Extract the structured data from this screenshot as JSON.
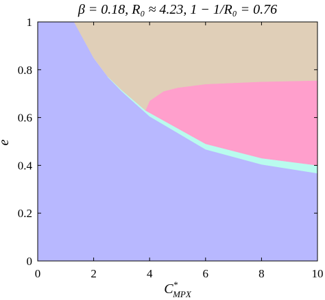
{
  "chart_data": {
    "type": "region",
    "title": "β = 0.18, R₀ ≈ 4.23, 1 − 1/R₀ = 0.76",
    "xlabel": {
      "base": "C",
      "sup": "*",
      "sub": "MPX"
    },
    "ylabel": "e",
    "xlim": [
      0,
      10
    ],
    "ylim": [
      0,
      1
    ],
    "xticks": [
      0,
      2,
      4,
      6,
      8,
      10
    ],
    "yticks": [
      0,
      0.2,
      0.4,
      0.6,
      0.8,
      1
    ],
    "regions": [
      {
        "color": "#b8b8ff",
        "x": [
          0,
          0,
          1.3,
          2,
          2.5,
          3,
          4,
          6,
          8,
          10,
          10
        ],
        "y": [
          0,
          1,
          1,
          0.848,
          0.77,
          0.71,
          0.605,
          0.467,
          0.404,
          0.367,
          0
        ]
      },
      {
        "color": "#b9fbee",
        "x": [
          2.5,
          3,
          4,
          6,
          8,
          10,
          10,
          8,
          6,
          4,
          3,
          2.5
        ],
        "y": [
          0.77,
          0.71,
          0.605,
          0.467,
          0.404,
          0.367,
          0.4,
          0.43,
          0.49,
          0.62,
          0.715,
          0.772
        ]
      },
      {
        "color": "#ff9fcc",
        "x": [
          3.85,
          4,
          6,
          8,
          10,
          10,
          8,
          6,
          5,
          4.5,
          4
        ],
        "y": [
          0.63,
          0.62,
          0.49,
          0.43,
          0.4,
          0.755,
          0.75,
          0.74,
          0.725,
          0.71,
          0.67
        ]
      },
      {
        "color": "#e0cfb8",
        "x": [
          1.3,
          2,
          2.5,
          3,
          3.85,
          4,
          4.5,
          5,
          6,
          8,
          10,
          10
        ],
        "y": [
          1,
          0.85,
          0.772,
          0.715,
          0.63,
          0.67,
          0.71,
          0.725,
          0.74,
          0.75,
          0.755,
          1
        ]
      }
    ]
  }
}
